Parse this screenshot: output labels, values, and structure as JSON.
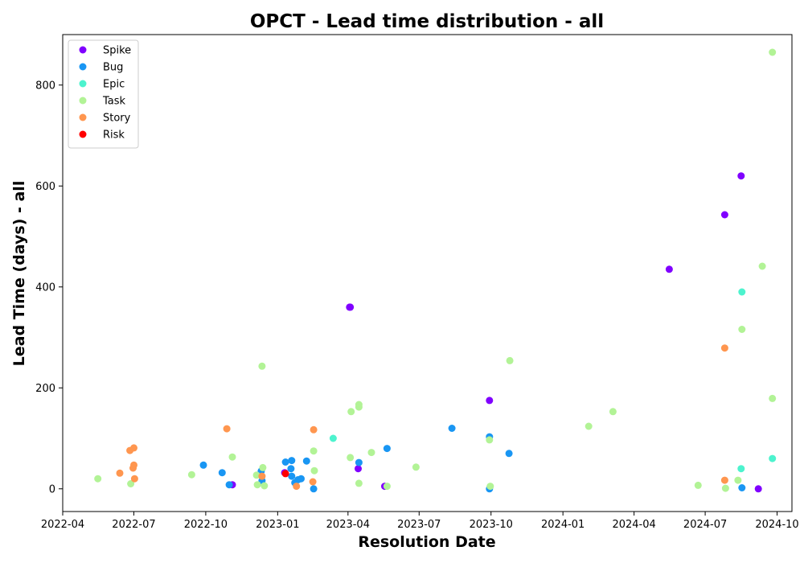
{
  "chart_data": {
    "type": "scatter",
    "title": "OPCT - Lead time distribution - all",
    "xlabel": "Resolution Date",
    "ylabel": "Lead Time (days) - all",
    "x_type": "date",
    "xlim": [
      "2022-04-01",
      "2024-10-20"
    ],
    "ylim": [
      -45,
      900
    ],
    "x_ticks": [
      "2022-04-01",
      "2022-07-01",
      "2022-10-01",
      "2023-01-01",
      "2023-04-01",
      "2023-07-01",
      "2023-10-01",
      "2024-01-01",
      "2024-04-01",
      "2024-07-01",
      "2024-10-01"
    ],
    "x_tick_labels": [
      "2022-04",
      "2022-07",
      "2022-10",
      "2023-01",
      "2023-04",
      "2023-07",
      "2023-10",
      "2024-01",
      "2024-04",
      "2024-07",
      "2024-10"
    ],
    "y_ticks": [
      0,
      200,
      400,
      600,
      800
    ],
    "y_tick_labels": [
      "0",
      "200",
      "400",
      "600",
      "800"
    ],
    "grid": false,
    "legend_position": "top-left",
    "series": [
      {
        "name": "Spike",
        "color": "#8000ff",
        "points": [
          {
            "x": "2022-11-04",
            "y": 8
          },
          {
            "x": "2023-01-10",
            "y": 32
          },
          {
            "x": "2023-04-03",
            "y": 360
          },
          {
            "x": "2023-04-04",
            "y": 360
          },
          {
            "x": "2023-04-14",
            "y": 40
          },
          {
            "x": "2023-05-18",
            "y": 5
          },
          {
            "x": "2023-09-29",
            "y": 175
          },
          {
            "x": "2024-05-16",
            "y": 435
          },
          {
            "x": "2024-07-26",
            "y": 543
          },
          {
            "x": "2024-08-16",
            "y": 620
          },
          {
            "x": "2024-09-07",
            "y": 0
          }
        ]
      },
      {
        "name": "Bug",
        "color": "#1996f3",
        "points": [
          {
            "x": "2022-09-28",
            "y": 47
          },
          {
            "x": "2022-10-22",
            "y": 32
          },
          {
            "x": "2022-10-31",
            "y": 8
          },
          {
            "x": "2022-12-11",
            "y": 35
          },
          {
            "x": "2022-12-12",
            "y": 16
          },
          {
            "x": "2023-01-11",
            "y": 53
          },
          {
            "x": "2023-01-19",
            "y": 56
          },
          {
            "x": "2023-01-18",
            "y": 40
          },
          {
            "x": "2023-01-19",
            "y": 25
          },
          {
            "x": "2023-01-23",
            "y": 12
          },
          {
            "x": "2023-01-27",
            "y": 18
          },
          {
            "x": "2023-01-31",
            "y": 20
          },
          {
            "x": "2023-02-07",
            "y": 55
          },
          {
            "x": "2023-02-16",
            "y": 0
          },
          {
            "x": "2023-04-15",
            "y": 52
          },
          {
            "x": "2023-05-21",
            "y": 80
          },
          {
            "x": "2023-08-12",
            "y": 120
          },
          {
            "x": "2023-09-29",
            "y": 103
          },
          {
            "x": "2023-09-29",
            "y": 0
          },
          {
            "x": "2023-10-24",
            "y": 70
          },
          {
            "x": "2024-08-17",
            "y": 2
          }
        ]
      },
      {
        "name": "Epic",
        "color": "#4df3ce",
        "points": [
          {
            "x": "2023-03-13",
            "y": 100
          },
          {
            "x": "2024-08-16",
            "y": 40
          },
          {
            "x": "2024-08-17",
            "y": 390
          },
          {
            "x": "2024-09-25",
            "y": 60
          }
        ]
      },
      {
        "name": "Task",
        "color": "#b2f396",
        "points": [
          {
            "x": "2022-05-16",
            "y": 20
          },
          {
            "x": "2022-06-27",
            "y": 10
          },
          {
            "x": "2022-09-13",
            "y": 28
          },
          {
            "x": "2022-11-04",
            "y": 63
          },
          {
            "x": "2022-12-05",
            "y": 27
          },
          {
            "x": "2022-12-06",
            "y": 8
          },
          {
            "x": "2022-12-12",
            "y": 243
          },
          {
            "x": "2022-12-13",
            "y": 42
          },
          {
            "x": "2022-12-15",
            "y": 6
          },
          {
            "x": "2023-02-16",
            "y": 75
          },
          {
            "x": "2023-02-17",
            "y": 36
          },
          {
            "x": "2023-04-04",
            "y": 62
          },
          {
            "x": "2023-04-05",
            "y": 153
          },
          {
            "x": "2023-04-15",
            "y": 162
          },
          {
            "x": "2023-04-15",
            "y": 167
          },
          {
            "x": "2023-04-15",
            "y": 11
          },
          {
            "x": "2023-05-01",
            "y": 72
          },
          {
            "x": "2023-05-21",
            "y": 5
          },
          {
            "x": "2023-06-27",
            "y": 43
          },
          {
            "x": "2023-09-29",
            "y": 97
          },
          {
            "x": "2023-09-30",
            "y": 5
          },
          {
            "x": "2023-10-25",
            "y": 254
          },
          {
            "x": "2024-02-03",
            "y": 124
          },
          {
            "x": "2024-03-05",
            "y": 153
          },
          {
            "x": "2024-06-22",
            "y": 7
          },
          {
            "x": "2024-07-27",
            "y": 1
          },
          {
            "x": "2024-08-12",
            "y": 17
          },
          {
            "x": "2024-08-17",
            "y": 316
          },
          {
            "x": "2024-09-12",
            "y": 441
          },
          {
            "x": "2024-09-25",
            "y": 865
          },
          {
            "x": "2024-09-25",
            "y": 179
          }
        ]
      },
      {
        "name": "Story",
        "color": "#ff964f",
        "points": [
          {
            "x": "2022-06-13",
            "y": 31
          },
          {
            "x": "2022-06-26",
            "y": 76
          },
          {
            "x": "2022-07-01",
            "y": 81
          },
          {
            "x": "2022-06-30",
            "y": 41
          },
          {
            "x": "2022-07-01",
            "y": 47
          },
          {
            "x": "2022-07-02",
            "y": 20
          },
          {
            "x": "2022-10-28",
            "y": 119
          },
          {
            "x": "2022-12-12",
            "y": 25
          },
          {
            "x": "2023-01-25",
            "y": 5
          },
          {
            "x": "2023-02-16",
            "y": 117
          },
          {
            "x": "2023-02-15",
            "y": 14
          },
          {
            "x": "2024-07-26",
            "y": 279
          },
          {
            "x": "2024-07-26",
            "y": 17
          }
        ]
      },
      {
        "name": "Risk",
        "color": "#ff0000",
        "points": [
          {
            "x": "2023-01-11",
            "y": 30
          }
        ]
      }
    ]
  }
}
